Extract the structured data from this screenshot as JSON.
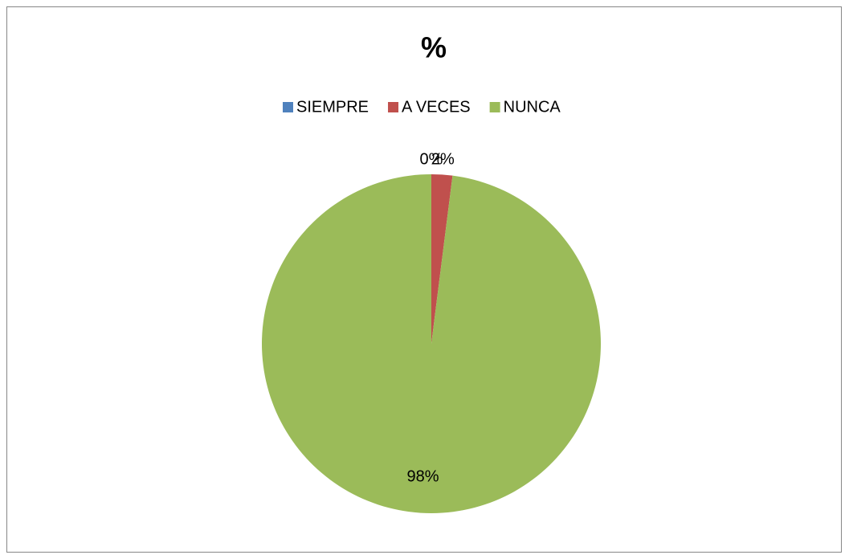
{
  "chart_data": {
    "type": "pie",
    "title": "%",
    "categories": [
      "SIEMPRE",
      "A VECES",
      "NUNCA"
    ],
    "values": [
      0,
      2,
      98
    ],
    "value_labels": [
      "0%",
      "2%",
      "98%"
    ],
    "colors": [
      "#4f81bd",
      "#c0504d",
      "#9bbb59"
    ],
    "legend": "top"
  }
}
